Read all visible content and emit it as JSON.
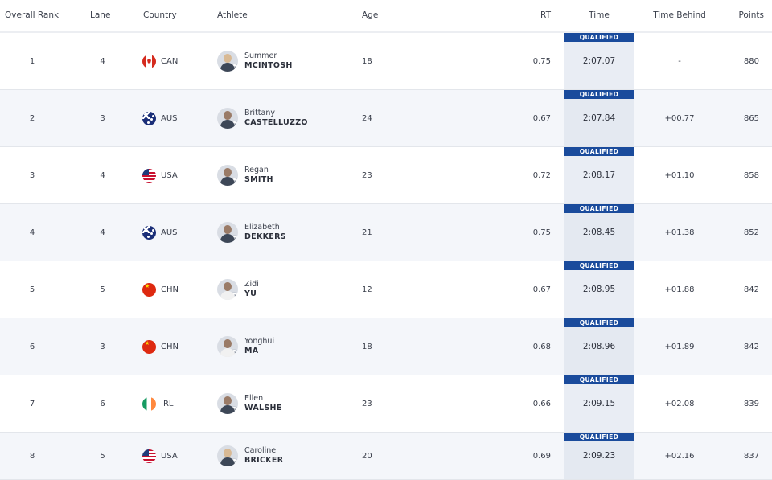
{
  "headers": {
    "rank": "Overall Rank",
    "lane": "Lane",
    "country": "Country",
    "athlete": "Athlete",
    "age": "Age",
    "rt": "RT",
    "time": "Time",
    "behind": "Time Behind",
    "points": "Points"
  },
  "rows": [
    {
      "rank": "1",
      "lane": "4",
      "flag_icon": "canada-flag-icon",
      "country": "CAN",
      "first": "Summer",
      "last": "MCINTOSH",
      "age": "18",
      "rt": "0.75",
      "badge": "QUALIFIED",
      "time": "2:07.07",
      "behind": "-",
      "points": "880"
    },
    {
      "rank": "2",
      "lane": "3",
      "flag_icon": "australia-flag-icon",
      "country": "AUS",
      "first": "Brittany",
      "last": "CASTELLUZZO",
      "age": "24",
      "rt": "0.67",
      "badge": "QUALIFIED",
      "time": "2:07.84",
      "behind": "+00.77",
      "points": "865"
    },
    {
      "rank": "3",
      "lane": "4",
      "flag_icon": "usa-flag-icon",
      "country": "USA",
      "first": "Regan",
      "last": "SMITH",
      "age": "23",
      "rt": "0.72",
      "badge": "QUALIFIED",
      "time": "2:08.17",
      "behind": "+01.10",
      "points": "858"
    },
    {
      "rank": "4",
      "lane": "4",
      "flag_icon": "australia-flag-icon",
      "country": "AUS",
      "first": "Elizabeth",
      "last": "DEKKERS",
      "age": "21",
      "rt": "0.75",
      "badge": "QUALIFIED",
      "time": "2:08.45",
      "behind": "+01.38",
      "points": "852"
    },
    {
      "rank": "5",
      "lane": "5",
      "flag_icon": "china-flag-icon",
      "country": "CHN",
      "first": "Zidi",
      "last": "YU",
      "age": "12",
      "rt": "0.67",
      "badge": "QUALIFIED",
      "time": "2:08.95",
      "behind": "+01.88",
      "points": "842"
    },
    {
      "rank": "6",
      "lane": "3",
      "flag_icon": "china-flag-icon",
      "country": "CHN",
      "first": "Yonghui",
      "last": "MA",
      "age": "18",
      "rt": "0.68",
      "badge": "QUALIFIED",
      "time": "2:08.96",
      "behind": "+01.89",
      "points": "842"
    },
    {
      "rank": "7",
      "lane": "6",
      "flag_icon": "ireland-flag-icon",
      "country": "IRL",
      "first": "Ellen",
      "last": "WALSHE",
      "age": "23",
      "rt": "0.66",
      "badge": "QUALIFIED",
      "time": "2:09.15",
      "behind": "+02.08",
      "points": "839"
    },
    {
      "rank": "8",
      "lane": "5",
      "flag_icon": "usa-flag-icon",
      "country": "USA",
      "first": "Caroline",
      "last": "BRICKER",
      "age": "20",
      "rt": "0.69",
      "badge": "QUALIFIED",
      "time": "2:09.23",
      "behind": "+02.16",
      "points": "837"
    }
  ],
  "colors": {
    "qualified_badge": "#1a4b9c",
    "row_alt": "#f4f6fa",
    "time_column": "#e9edf4"
  }
}
